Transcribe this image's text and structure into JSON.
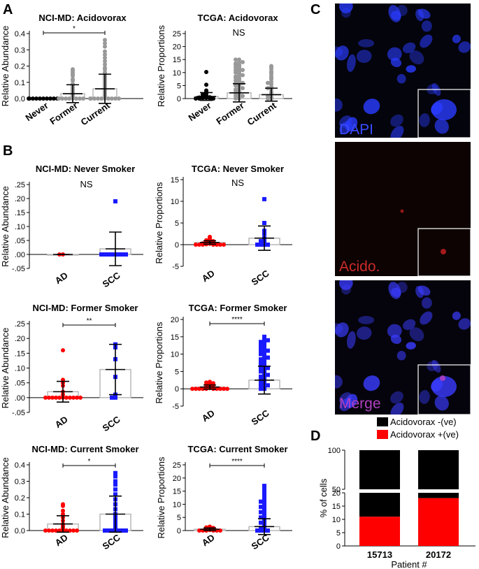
{
  "panel_labels": {
    "a": "A",
    "b": "B",
    "c": "C",
    "d": "D"
  },
  "colors": {
    "gray": "#999999",
    "black": "#000000",
    "red": "#ff0000",
    "blue": "#1a1aff",
    "bar_edge": "#bbbbbb",
    "dapi": "#2a3cff",
    "acido": "#cc1f1f",
    "merge": "#b040c0"
  },
  "microscopy": {
    "dapi": "DAPI",
    "acido": "Acido.",
    "merge": "Merge"
  },
  "chart_data": [
    {
      "id": "a1",
      "type": "scatter",
      "title": "NCI-MD: Acidovorax",
      "ylabel": "Relative Abundance",
      "sig": "*",
      "sigFrom": 0,
      "sigTo": 2,
      "ylim": [
        0,
        0.4
      ],
      "yticks": [
        "0.0",
        "0.1",
        "0.2",
        "0.3",
        "0.4"
      ],
      "tickVals": [
        0,
        0.1,
        0.2,
        0.3,
        0.4
      ],
      "categories": [
        "Never",
        "Former",
        "Current"
      ],
      "series": [
        {
          "name": "Never",
          "color": "#000000",
          "shape": "circle",
          "mean": 0.0,
          "sd": 0.0,
          "values": [
            0,
            0,
            0,
            0,
            0,
            0,
            0,
            0,
            0,
            0
          ]
        },
        {
          "name": "Former",
          "color": "#999999",
          "shape": "circle",
          "mean": 0.03,
          "sd": 0.055,
          "values": [
            0.18,
            0.17,
            0.16,
            0.15,
            0.14,
            0.12,
            0.11,
            0.09,
            0.08,
            0.07,
            0.06,
            0.05,
            0.04,
            0.03,
            0.02,
            0.01,
            0,
            0,
            0,
            0,
            0,
            0,
            0,
            0
          ]
        },
        {
          "name": "Current",
          "color": "#999999",
          "shape": "circle",
          "mean": 0.06,
          "sd": 0.09,
          "values": [
            0.36,
            0.34,
            0.32,
            0.29,
            0.27,
            0.25,
            0.23,
            0.21,
            0.19,
            0.18,
            0.16,
            0.15,
            0.14,
            0.13,
            0.12,
            0.11,
            0.1,
            0.09,
            0.08,
            0.07,
            0.06,
            0.05,
            0.04,
            0.03,
            0.02,
            0.01,
            0,
            0,
            0,
            0,
            0,
            0,
            0,
            0,
            0,
            0
          ]
        }
      ]
    },
    {
      "id": "a2",
      "type": "scatter",
      "title": "TCGA: Acidovorax",
      "ylabel": "Relative Proportions",
      "sig": "NS",
      "ylim": [
        0,
        25
      ],
      "yticks": [
        "0",
        "5",
        "10",
        "15",
        "20",
        "25"
      ],
      "tickVals": [
        0,
        5,
        10,
        15,
        20,
        25
      ],
      "categories": [
        "Never",
        "Former",
        "Current"
      ],
      "series": [
        {
          "name": "Never",
          "color": "#000000",
          "shape": "circle",
          "mean": 0.8,
          "sd": 1.5,
          "values": [
            10.2,
            5.3,
            3.1,
            2.5,
            2,
            1.6,
            1.2,
            1,
            0.8,
            0.6,
            0.5,
            0.4,
            0.3,
            0.2,
            0.1,
            0,
            0,
            0
          ]
        },
        {
          "name": "Former",
          "color": "#999999",
          "shape": "circle",
          "mean": 2.2,
          "sd": 3.5,
          "values": [
            15,
            14,
            13.5,
            13,
            12.5,
            12,
            11.5,
            11,
            10.5,
            10,
            9.5,
            9,
            8.5,
            8,
            7.5,
            7,
            6.5,
            6,
            5.5,
            5,
            4.5,
            4,
            3.5,
            3,
            2.5,
            2,
            1.5,
            1,
            0.5,
            0,
            15,
            14,
            13,
            12,
            11,
            10,
            9,
            8,
            7,
            6,
            5,
            4,
            3,
            2,
            1,
            0
          ]
        },
        {
          "name": "Current",
          "color": "#999999",
          "shape": "circle",
          "mean": 1.5,
          "sd": 2.5,
          "values": [
            12.5,
            11.5,
            10.5,
            9.5,
            8.5,
            7.5,
            6.5,
            5.5,
            4.5,
            3.5,
            2.5,
            1.5,
            0.5,
            0,
            12,
            10,
            8,
            6,
            4,
            2,
            1,
            0
          ]
        }
      ]
    },
    {
      "id": "b1",
      "type": "scatter",
      "title": "NCI-MD: Never Smoker",
      "ylabel": "Relative Abundance",
      "sig": "NS",
      "ylim": [
        -0.05,
        0.25
      ],
      "yticks": [
        ".25",
        ".20",
        ".15",
        ".10",
        ".05",
        ".00",
        "-.05"
      ],
      "tickVals": [
        0.25,
        0.2,
        0.15,
        0.1,
        0.05,
        0,
        -0.05
      ],
      "categories": [
        "AD",
        "SCC"
      ],
      "series": [
        {
          "name": "AD",
          "color": "#ff0000",
          "shape": "circle",
          "mean": 0.0,
          "sd": 0.0,
          "values": [
            0,
            0
          ]
        },
        {
          "name": "SCC",
          "color": "#1a1aff",
          "shape": "square",
          "mean": 0.02,
          "sd": 0.06,
          "values": [
            0.19,
            0,
            0,
            0,
            0,
            0,
            0,
            0,
            0
          ]
        }
      ]
    },
    {
      "id": "b2",
      "type": "scatter",
      "title": "TCGA: Never Smoker",
      "ylabel": "Relative Proportions",
      "sig": "NS",
      "ylim": [
        -5,
        15
      ],
      "yticks": [
        "15",
        "10",
        "5",
        "0",
        "-5"
      ],
      "tickVals": [
        15,
        10,
        5,
        0,
        -5
      ],
      "categories": [
        "AD",
        "SCC"
      ],
      "series": [
        {
          "name": "AD",
          "color": "#ff0000",
          "shape": "circle",
          "mean": 0.5,
          "sd": 0.4,
          "values": [
            1.8,
            1.5,
            1.2,
            1,
            0.8,
            0.6,
            0.5,
            0.4,
            0.3,
            0.2,
            0.1,
            0,
            0,
            0,
            0,
            0,
            0,
            0
          ]
        },
        {
          "name": "SCC",
          "color": "#1a1aff",
          "shape": "square",
          "mean": 1.5,
          "sd": 2.8,
          "values": [
            10.5,
            5,
            3.2,
            2.5,
            1.5,
            1,
            0.8,
            0.5,
            0.3,
            0,
            0,
            0,
            0
          ]
        }
      ]
    },
    {
      "id": "b3",
      "type": "scatter",
      "title": "NCI-MD: Former Smoker",
      "ylabel": "Relative Abundance",
      "sig": "**",
      "sigFrom": 0,
      "sigTo": 1,
      "ylim": [
        -0.05,
        0.25
      ],
      "yticks": [
        ".25",
        ".20",
        ".15",
        ".10",
        ".05",
        ".00",
        "-.05"
      ],
      "tickVals": [
        0.25,
        0.2,
        0.15,
        0.1,
        0.05,
        0,
        -0.05
      ],
      "categories": [
        "AD",
        "SCC"
      ],
      "series": [
        {
          "name": "AD",
          "color": "#ff0000",
          "shape": "circle",
          "mean": 0.02,
          "sd": 0.035,
          "values": [
            0.16,
            0.06,
            0.05,
            0.04,
            0.02,
            0.01,
            0,
            0,
            0,
            0,
            0,
            0,
            0,
            0,
            0,
            0,
            0
          ]
        },
        {
          "name": "SCC",
          "color": "#1a1aff",
          "shape": "square",
          "mean": 0.095,
          "sd": 0.085,
          "values": [
            0.18,
            0.17,
            0.13,
            0.07,
            0.01,
            0,
            0
          ]
        }
      ]
    },
    {
      "id": "b4",
      "type": "scatter",
      "title": "TCGA: Former Smoker",
      "ylabel": "Relative Proportions",
      "sig": "****",
      "sigFrom": 0,
      "sigTo": 1,
      "ylim": [
        -5,
        20
      ],
      "yticks": [
        "20",
        "15",
        "10",
        "5",
        "0",
        "-5"
      ],
      "tickVals": [
        20,
        15,
        10,
        5,
        0,
        -5
      ],
      "categories": [
        "AD",
        "SCC"
      ],
      "series": [
        {
          "name": "AD",
          "color": "#ff0000",
          "shape": "circle",
          "mean": 0.5,
          "sd": 0.6,
          "values": [
            2,
            1.8,
            1.6,
            1.4,
            1.2,
            1,
            0.8,
            0.6,
            0.4,
            0.2,
            0,
            0,
            0,
            0,
            0,
            0,
            0,
            0,
            0,
            0
          ]
        },
        {
          "name": "SCC",
          "color": "#1a1aff",
          "shape": "square",
          "mean": 2.5,
          "sd": 4,
          "values": [
            15,
            14.5,
            14,
            13.5,
            13,
            12.5,
            12,
            11.5,
            11,
            10.5,
            10,
            9.5,
            9,
            8.5,
            8,
            7.5,
            7,
            6.5,
            6,
            5.5,
            5,
            4.5,
            4,
            3.5,
            3,
            2.5,
            2,
            1.5,
            1,
            0.5,
            0,
            14,
            13,
            12,
            11,
            10,
            9,
            8,
            7,
            6,
            5,
            4,
            3,
            2,
            1,
            0
          ]
        }
      ]
    },
    {
      "id": "b5",
      "type": "scatter",
      "title": "NCI-MD: Current Smoker",
      "ylabel": "Relative Abundance",
      "sig": "*",
      "sigFrom": 0,
      "sigTo": 1,
      "ylim": [
        0,
        0.4
      ],
      "yticks": [
        "0.0",
        "0.1",
        "0.2",
        "0.3",
        "0.4"
      ],
      "tickVals": [
        0,
        0.1,
        0.2,
        0.3,
        0.4
      ],
      "categories": [
        "AD",
        "SCC"
      ],
      "series": [
        {
          "name": "AD",
          "color": "#ff0000",
          "shape": "circle",
          "mean": 0.04,
          "sd": 0.05,
          "values": [
            0.16,
            0.15,
            0.12,
            0.1,
            0.08,
            0.06,
            0.04,
            0.03,
            0.02,
            0.01,
            0,
            0,
            0,
            0,
            0,
            0,
            0,
            0,
            0,
            0
          ]
        },
        {
          "name": "SCC",
          "color": "#1a1aff",
          "shape": "square",
          "mean": 0.1,
          "sd": 0.11,
          "values": [
            0.35,
            0.33,
            0.3,
            0.28,
            0.25,
            0.22,
            0.19,
            0.16,
            0.13,
            0.1,
            0.08,
            0.06,
            0.04,
            0.02,
            0.01,
            0,
            0,
            0,
            0,
            0,
            0,
            0
          ]
        }
      ]
    },
    {
      "id": "b6",
      "type": "scatter",
      "title": "TCGA: Current Smoker",
      "ylabel": "Relative Proportions",
      "sig": "****",
      "sigFrom": 0,
      "sigTo": 1,
      "ylim": [
        0,
        25
      ],
      "yticks": [
        "0",
        "5",
        "10",
        "15",
        "20",
        "25"
      ],
      "tickVals": [
        0,
        5,
        10,
        15,
        20,
        25
      ],
      "categories": [
        "AD",
        "SCC"
      ],
      "series": [
        {
          "name": "AD",
          "color": "#ff0000",
          "shape": "circle",
          "mean": 0.5,
          "sd": 0.5,
          "values": [
            1.5,
            1.2,
            1,
            0.8,
            0.6,
            0.4,
            0.2,
            0,
            0,
            0,
            0,
            0,
            0
          ]
        },
        {
          "name": "SCC",
          "color": "#1a1aff",
          "shape": "square",
          "mean": 1.5,
          "sd": 3,
          "values": [
            17,
            15.5,
            14,
            12.5,
            11,
            10,
            9,
            8,
            7,
            6,
            5,
            4,
            3,
            2,
            1,
            0.5,
            0,
            0,
            0,
            0,
            16,
            13,
            11,
            9,
            7,
            5,
            3,
            1
          ]
        }
      ]
    },
    {
      "id": "d",
      "type": "bar",
      "stacked": true,
      "ylabel": "% of cells",
      "xlabel": "Patient #",
      "categories": [
        "15713",
        "20172"
      ],
      "legend": [
        {
          "name": "Acidovorax -(ve)",
          "color": "#000000"
        },
        {
          "name": "Acidovorax +(ve)",
          "color": "#ff0000"
        }
      ],
      "series": [
        {
          "name": "Acidovorax -(ve)",
          "values": [
            89,
            82
          ],
          "color": "#000000"
        },
        {
          "name": "Acidovorax +(ve)",
          "values": [
            11,
            18
          ],
          "color": "#ff0000"
        }
      ],
      "yticks_top": [
        "50",
        "100"
      ],
      "yticks_bottom": [
        "0",
        "5",
        "10",
        "15",
        "20"
      ]
    }
  ]
}
